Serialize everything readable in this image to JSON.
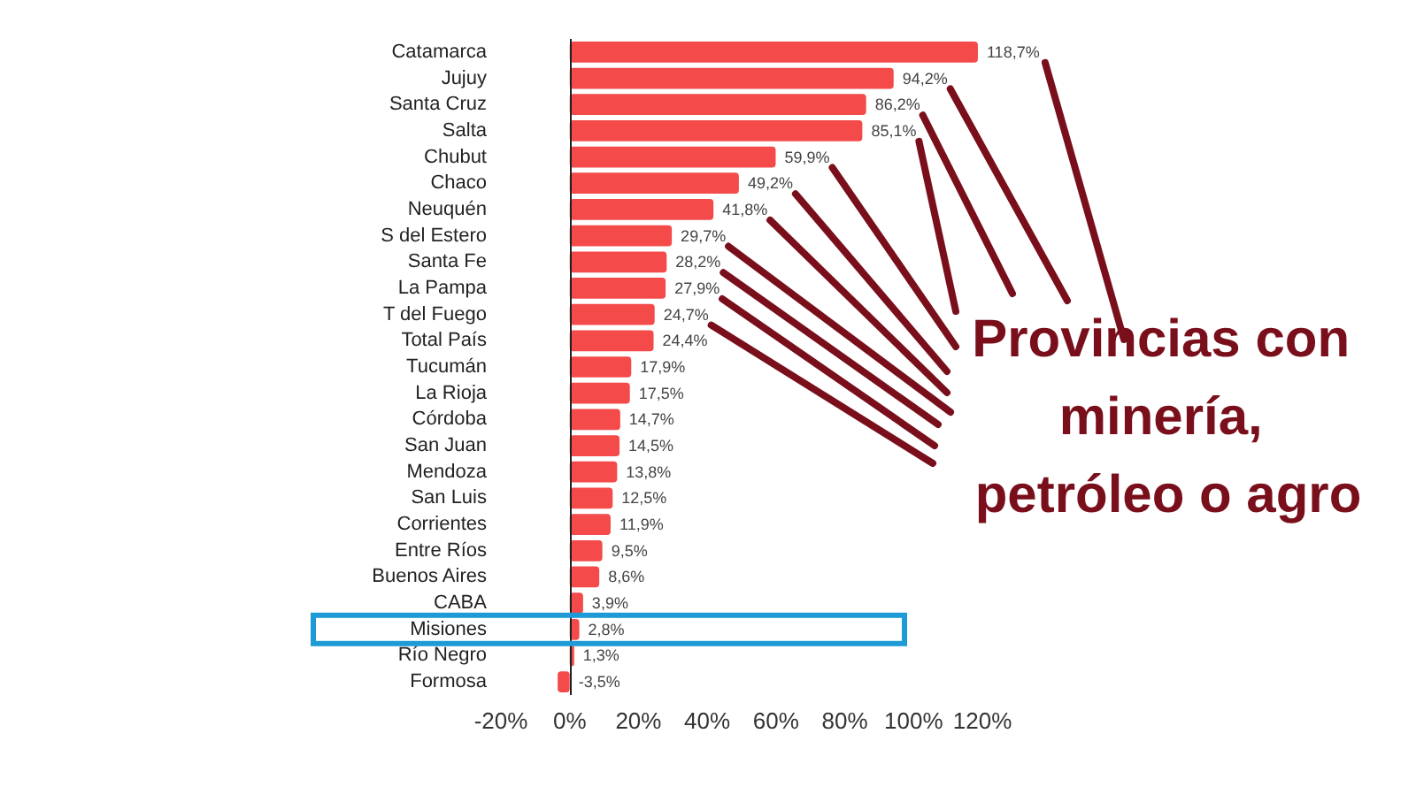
{
  "chart_data": {
    "type": "bar",
    "orientation": "horizontal",
    "categories": [
      "Catamarca",
      "Jujuy",
      "Santa Cruz",
      "Salta",
      "Chubut",
      "Chaco",
      "Neuquén",
      "S del Estero",
      "Santa Fe",
      "La Pampa",
      "T del Fuego",
      "Total País",
      "Tucumán",
      "La Rioja",
      "Córdoba",
      "San Juan",
      "Mendoza",
      "San Luis",
      "Corrientes",
      "Entre Ríos",
      "Buenos Aires",
      "CABA",
      "Misiones",
      "Río Negro",
      "Formosa"
    ],
    "values": [
      118.7,
      94.2,
      86.2,
      85.1,
      59.9,
      49.2,
      41.8,
      29.7,
      28.2,
      27.9,
      24.7,
      24.4,
      17.9,
      17.5,
      14.7,
      14.5,
      13.8,
      12.5,
      11.9,
      9.5,
      8.6,
      3.9,
      2.8,
      1.3,
      -3.5
    ],
    "value_labels": [
      "118,7%",
      "94,2%",
      "86,2%",
      "85,1%",
      "59,9%",
      "49,2%",
      "41,8%",
      "29,7%",
      "28,2%",
      "27,9%",
      "24,7%",
      "24,4%",
      "17,9%",
      "17,5%",
      "14,7%",
      "14,5%",
      "13,8%",
      "12,5%",
      "11,9%",
      "9,5%",
      "8,6%",
      "3,9%",
      "2,8%",
      "1,3%",
      "-3,5%"
    ],
    "color": "#f44a4a",
    "xlim": [
      -20,
      120
    ],
    "xticks": [
      {
        "value": -20,
        "label": "-20%"
      },
      {
        "value": 0,
        "label": "0%"
      },
      {
        "value": 20,
        "label": "20%"
      },
      {
        "value": 40,
        "label": "40%"
      },
      {
        "value": 60,
        "label": "60%"
      },
      {
        "value": 80,
        "label": "80%"
      },
      {
        "value": 100,
        "label": "100%"
      },
      {
        "value": 120,
        "label": "120%"
      }
    ],
    "ref_lines": [
      {
        "axis": "x",
        "value": 0,
        "color": "#222222"
      }
    ],
    "annotations": [
      "Provincias con minería, petróleo o agro"
    ],
    "grid": false
  }
}
